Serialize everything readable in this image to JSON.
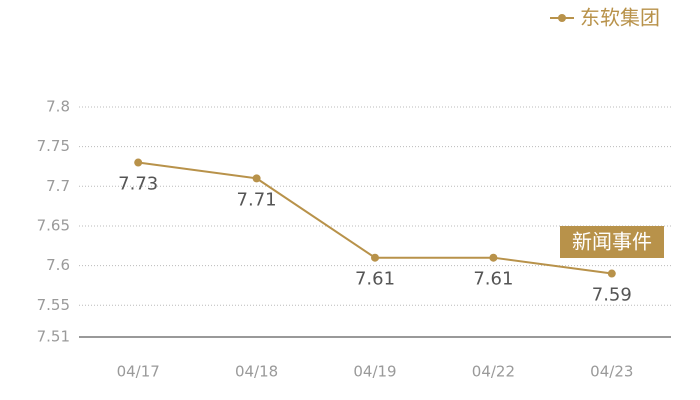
{
  "chart_data": {
    "type": "line",
    "categories": [
      "04/17",
      "04/18",
      "04/19",
      "04/22",
      "04/23"
    ],
    "series": [
      {
        "name": "东软集团",
        "color": "#b8924a",
        "values": [
          7.73,
          7.71,
          7.61,
          7.61,
          7.59
        ]
      }
    ],
    "ylim": [
      7.51,
      7.8
    ],
    "yticks": [
      7.51,
      7.55,
      7.6,
      7.65,
      7.7,
      7.75,
      7.8
    ],
    "grid": true,
    "legend": "top-right",
    "annotation": "新闻事件"
  }
}
